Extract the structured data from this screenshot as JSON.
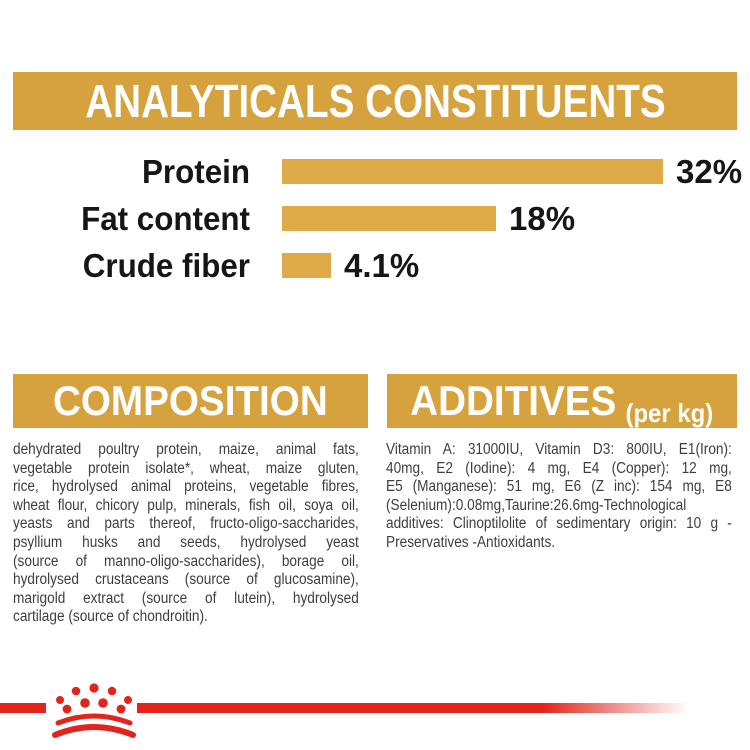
{
  "header": {
    "title": "ANALYTICALS CONSTITUENTS"
  },
  "chart_data": {
    "type": "bar",
    "orientation": "horizontal",
    "title": "ANALYTICALS CONSTITUENTS",
    "categories": [
      "Protein",
      "Fat content",
      "Crude fiber"
    ],
    "values": [
      32,
      18,
      4.1
    ],
    "value_labels": [
      "32%",
      "18%",
      "4.1%"
    ],
    "unit": "%",
    "xlim": [
      0,
      32
    ],
    "bar_color": "#DFAB48",
    "grid": false,
    "legend": false
  },
  "composition": {
    "title": "COMPOSITION",
    "lines": [
      "dehydrated poultry protein, maize, animal fats,",
      "vegetable protein isolate*, wheat, maize gluten,",
      "rice, hydrolysed animal proteins, vegetable fibres,",
      "wheat flour, chicory pulp, minerals, fish oil, soya oil,",
      "yeasts and parts thereof, fructo-oligo-saccharides,",
      "psyllium husks and seeds, hydrolysed yeast",
      "(source of manno-oligo-saccharides), borage oil,",
      "hydrolysed crustaceans (source of glucosamine),",
      "marigold extract (source of lutein), hydrolysed",
      "cartilage (source of chondroitin)."
    ]
  },
  "additives": {
    "title": "ADDITIVES",
    "title_suffix": "(per kg)",
    "lines": [
      "Vitamin A: 31000IU, Vitamin D3: 800IU, E1(Iron):",
      "40mg, E2 (Iodine): 4 mg, E4 (Copper): 12 mg,",
      "E5 (Manganese): 51 mg, E6 (Z inc): 154 mg, E8",
      "(Selenium):0.08mg,Taurine:26.6mg-Technological",
      "additives: Clinoptilolite of sedimentary origin: 10 g -",
      "Preservatives -Antioxidants."
    ]
  },
  "footer": {
    "logo_icon": "royal-canin-crown-icon"
  },
  "colors": {
    "gold_banner": "#D6A23D",
    "gold_bar": "#DFAB48",
    "brand_red": "#E2251C",
    "heading_text": "#FFFFFF",
    "label_text": "#161616",
    "body_text": "#3E3E3D"
  }
}
